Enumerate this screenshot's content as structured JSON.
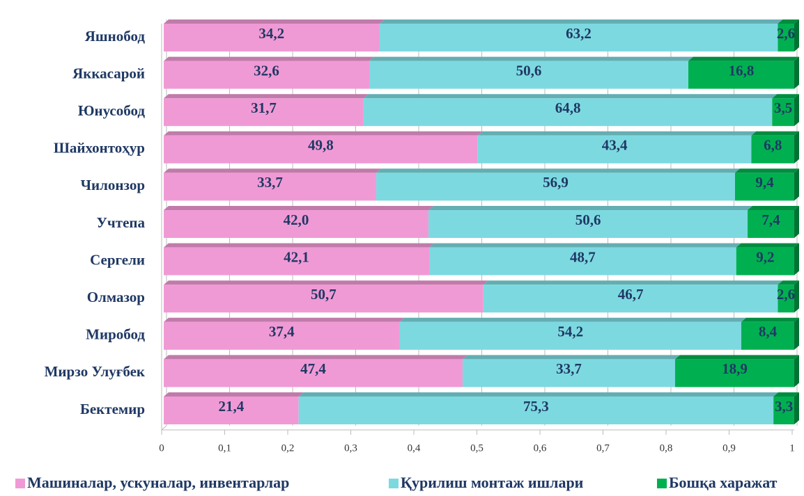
{
  "chart_data": {
    "type": "stacked_barh",
    "categories": [
      "Яшнобод",
      "Яккасарой",
      "Юнусобод",
      "Шайхонтоҳур",
      "Чилонзор",
      "Учтепа",
      "Сергели",
      "Олмазор",
      "Миробод",
      "Мирзо Улуғбек",
      "Бектемир"
    ],
    "series": [
      {
        "name": "Машиналар, ускуналар, инвентарлар",
        "color": "#f09ad5",
        "values": [
          0.342,
          0.326,
          0.317,
          0.498,
          0.337,
          0.42,
          0.421,
          0.507,
          0.374,
          0.474,
          0.214
        ],
        "value_labels": [
          "34,2",
          "32,6",
          "31,7",
          "49,8",
          "33,7",
          "42,0",
          "42,1",
          "50,7",
          "37,4",
          "47,4",
          "21,4"
        ]
      },
      {
        "name": "Қурилиш монтаж ишлари",
        "color": "#7dd9e0",
        "values": [
          0.632,
          0.506,
          0.648,
          0.434,
          0.569,
          0.506,
          0.487,
          0.467,
          0.542,
          0.337,
          0.753
        ],
        "value_labels": [
          "63,2",
          "50,6",
          "64,8",
          "43,4",
          "56,9",
          "50,6",
          "48,7",
          "46,7",
          "54,2",
          "33,7",
          "75,3"
        ]
      },
      {
        "name": "Бошқа харажат",
        "color": "#00b050",
        "values": [
          0.026,
          0.168,
          0.035,
          0.068,
          0.094,
          0.074,
          0.092,
          0.026,
          0.084,
          0.189,
          0.033
        ],
        "value_labels": [
          "2,6",
          "16,8",
          "3,5",
          "6,8",
          "9,4",
          "7,4",
          "9,2",
          "2,6",
          "8,4",
          "18,9",
          "3,3"
        ]
      }
    ],
    "xlim": [
      0,
      1
    ],
    "xticks": [
      0,
      {
        "value": 0.1,
        "label": "0,1"
      },
      {
        "value": 0.2,
        "label": "0,2"
      },
      {
        "value": 0.3,
        "label": "0,3"
      },
      {
        "value": 0.4,
        "label": "0,4"
      },
      {
        "value": 0.5,
        "label": "0,5"
      },
      {
        "value": 0.6,
        "label": "0,6"
      },
      {
        "value": 0.7,
        "label": "0,7"
      },
      {
        "value": 0.8,
        "label": "0,8"
      },
      {
        "value": 0.9,
        "label": "0,9"
      },
      1
    ],
    "grid": true,
    "legend": "bottom"
  }
}
